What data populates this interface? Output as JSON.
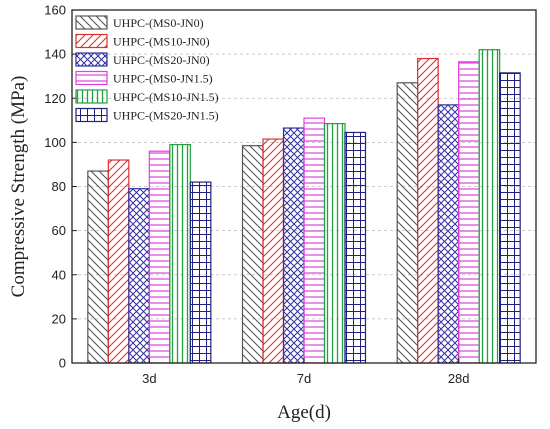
{
  "chart_data": {
    "type": "bar",
    "title": "",
    "xlabel": "Age(d)",
    "ylabel": "Compressive Strength (MPa)",
    "categories": [
      "3d",
      "7d",
      "28d"
    ],
    "ylim": [
      0,
      160
    ],
    "yticks": [
      0,
      20,
      40,
      60,
      80,
      100,
      120,
      140,
      160
    ],
    "grid": "horizontal dashed",
    "legend_position": "top-left",
    "series": [
      {
        "name": "UHPC-(MS0-JN0)",
        "values": [
          87,
          98.5,
          127
        ],
        "color": "#555555",
        "pattern": "diag-back"
      },
      {
        "name": "UHPC-(MS10-JN0)",
        "values": [
          92,
          101.5,
          138
        ],
        "color": "#dd3030",
        "pattern": "diag-fwd"
      },
      {
        "name": "UHPC-(MS20-JN0)",
        "values": [
          79,
          106.5,
          117
        ],
        "color": "#3030a0",
        "pattern": "crosshatch"
      },
      {
        "name": "UHPC-(MS0-JN1.5)",
        "values": [
          96,
          111,
          136.5
        ],
        "color": "#e040e0",
        "pattern": "horizontal"
      },
      {
        "name": "UHPC-(MS10-JN1.5)",
        "values": [
          99,
          108.5,
          142
        ],
        "color": "#20a040",
        "pattern": "vertical"
      },
      {
        "name": "UHPC-(MS20-JN1.5)",
        "values": [
          82,
          104.5,
          131.5
        ],
        "color": "#202080",
        "pattern": "grid"
      }
    ]
  }
}
